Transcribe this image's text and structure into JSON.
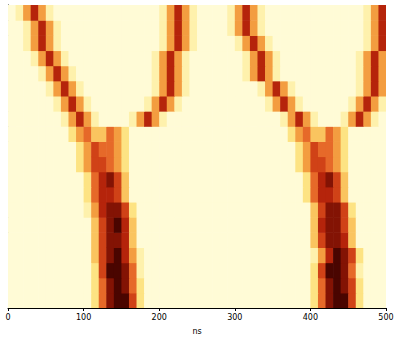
{
  "chart_data": {
    "type": "heatmap",
    "xlabel": "ns",
    "xlim": [
      0,
      500
    ],
    "xticks": [
      0,
      100,
      200,
      300,
      400,
      500
    ],
    "ylim": [
      0,
      20
    ],
    "tick_labels": "x",
    "grid": false,
    "xbins": [
      0,
      10,
      20,
      30,
      40,
      50,
      60,
      70,
      80,
      90,
      100,
      110,
      120,
      130,
      140,
      150,
      160,
      170,
      180,
      190,
      200,
      210,
      220,
      230,
      240,
      250,
      260,
      270,
      280,
      290,
      300,
      310,
      320,
      330,
      340,
      350,
      360,
      370,
      380,
      390,
      400,
      410,
      420,
      430,
      440,
      450,
      460,
      470,
      480,
      490,
      500
    ],
    "ybins": [
      0,
      1,
      2,
      3,
      4,
      5,
      6,
      7,
      8,
      9,
      10,
      11,
      12,
      13,
      14,
      15,
      16,
      17,
      18,
      19,
      20
    ],
    "cells": [
      [
        0,
        0,
        0,
        0,
        0,
        0,
        0,
        0,
        0,
        0,
        0,
        2,
        5,
        8,
        9,
        9,
        6,
        2,
        0,
        0,
        0,
        0,
        0,
        0,
        0,
        0,
        0,
        0,
        0,
        0,
        0,
        0,
        0,
        0,
        0,
        0,
        0,
        0,
        0,
        0,
        2,
        5,
        8,
        9,
        9,
        6,
        2,
        0,
        0,
        0
      ],
      [
        0,
        0,
        0,
        0,
        0,
        0,
        0,
        0,
        0,
        0,
        0,
        2,
        5,
        8,
        9,
        8,
        5,
        2,
        0,
        0,
        0,
        0,
        0,
        0,
        0,
        0,
        0,
        0,
        0,
        0,
        0,
        0,
        0,
        0,
        0,
        0,
        0,
        0,
        0,
        0,
        2,
        5,
        8,
        9,
        8,
        6,
        2,
        0,
        0,
        0
      ],
      [
        0,
        0,
        0,
        0,
        0,
        0,
        0,
        0,
        0,
        0,
        0,
        2,
        6,
        9,
        9,
        8,
        5,
        1,
        0,
        0,
        0,
        0,
        0,
        0,
        0,
        0,
        0,
        0,
        0,
        0,
        0,
        0,
        0,
        0,
        0,
        0,
        0,
        0,
        0,
        0,
        2,
        6,
        9,
        9,
        8,
        5,
        1,
        0,
        0,
        0
      ],
      [
        0,
        0,
        0,
        0,
        0,
        0,
        0,
        0,
        0,
        0,
        0,
        3,
        6,
        8,
        9,
        7,
        4,
        1,
        0,
        0,
        0,
        0,
        0,
        0,
        0,
        0,
        0,
        0,
        0,
        0,
        0,
        0,
        0,
        0,
        0,
        0,
        0,
        0,
        0,
        0,
        1,
        4,
        7,
        9,
        8,
        6,
        2,
        0,
        0,
        0
      ],
      [
        0,
        0,
        0,
        0,
        0,
        0,
        0,
        0,
        0,
        0,
        0,
        3,
        6,
        8,
        8,
        7,
        3,
        0,
        0,
        0,
        0,
        0,
        0,
        0,
        0,
        0,
        0,
        0,
        0,
        0,
        0,
        0,
        0,
        0,
        0,
        0,
        0,
        0,
        0,
        0,
        3,
        6,
        8,
        8,
        7,
        3,
        0,
        0,
        0,
        0
      ],
      [
        0,
        0,
        0,
        0,
        0,
        0,
        0,
        0,
        0,
        0,
        0,
        3,
        6,
        8,
        9,
        7,
        3,
        0,
        0,
        0,
        0,
        0,
        0,
        0,
        0,
        0,
        0,
        0,
        0,
        0,
        0,
        0,
        0,
        0,
        0,
        0,
        0,
        0,
        0,
        0,
        3,
        7,
        8,
        8,
        6,
        3,
        0,
        0,
        0,
        0
      ],
      [
        0,
        0,
        0,
        0,
        0,
        0,
        0,
        0,
        0,
        0,
        1,
        4,
        7,
        8,
        8,
        6,
        2,
        0,
        0,
        0,
        0,
        0,
        0,
        0,
        0,
        0,
        0,
        0,
        0,
        0,
        0,
        0,
        0,
        0,
        0,
        0,
        0,
        0,
        0,
        0,
        3,
        6,
        8,
        8,
        6,
        2,
        0,
        0,
        0,
        0
      ],
      [
        0,
        0,
        0,
        0,
        0,
        0,
        0,
        0,
        0,
        0,
        2,
        5,
        7,
        7,
        6,
        3,
        0,
        0,
        0,
        0,
        0,
        0,
        0,
        0,
        0,
        0,
        0,
        0,
        0,
        0,
        0,
        0,
        0,
        0,
        0,
        0,
        0,
        0,
        0,
        2,
        5,
        7,
        7,
        6,
        3,
        0,
        0,
        0,
        0,
        0
      ],
      [
        0,
        0,
        0,
        0,
        0,
        0,
        0,
        0,
        0,
        0,
        2,
        5,
        7,
        8,
        6,
        3,
        0,
        0,
        0,
        0,
        0,
        0,
        0,
        0,
        0,
        0,
        0,
        0,
        0,
        0,
        0,
        0,
        0,
        0,
        0,
        0,
        0,
        0,
        0,
        2,
        5,
        7,
        8,
        6,
        3,
        0,
        0,
        0,
        0,
        0
      ],
      [
        0,
        0,
        0,
        0,
        0,
        0,
        0,
        0,
        0,
        2,
        4,
        6,
        6,
        5,
        4,
        2,
        0,
        0,
        0,
        0,
        0,
        0,
        0,
        0,
        0,
        0,
        0,
        0,
        0,
        0,
        0,
        0,
        0,
        0,
        0,
        0,
        0,
        0,
        2,
        4,
        6,
        6,
        5,
        4,
        2,
        0,
        0,
        0,
        0,
        0
      ],
      [
        0,
        0,
        0,
        0,
        0,
        0,
        0,
        0,
        0,
        2,
        4,
        6,
        5,
        5,
        4,
        2,
        0,
        0,
        0,
        0,
        0,
        0,
        0,
        0,
        0,
        0,
        0,
        0,
        0,
        0,
        0,
        0,
        0,
        0,
        0,
        0,
        0,
        0,
        2,
        4,
        6,
        5,
        5,
        4,
        2,
        0,
        0,
        0,
        0,
        0
      ],
      [
        0,
        0,
        0,
        0,
        0,
        0,
        0,
        0,
        2,
        4,
        5,
        3,
        3,
        5,
        4,
        2,
        0,
        0,
        0,
        0,
        0,
        0,
        0,
        0,
        0,
        0,
        0,
        0,
        0,
        0,
        0,
        0,
        0,
        0,
        0,
        0,
        0,
        2,
        4,
        5,
        3,
        3,
        5,
        4,
        2,
        0,
        0,
        0,
        0,
        0
      ],
      [
        0,
        0,
        0,
        0,
        0,
        0,
        0,
        1,
        4,
        7,
        4,
        1,
        0,
        0,
        0,
        0,
        1,
        4,
        7,
        4,
        1,
        0,
        0,
        0,
        0,
        0,
        0,
        0,
        0,
        0,
        0,
        0,
        0,
        0,
        0,
        0,
        1,
        4,
        7,
        4,
        1,
        0,
        0,
        0,
        1,
        4,
        7,
        4,
        1,
        0
      ],
      [
        0,
        0,
        0,
        0,
        0,
        0,
        1,
        4,
        7,
        4,
        1,
        0,
        0,
        0,
        0,
        0,
        0,
        0,
        1,
        4,
        7,
        4,
        1,
        0,
        0,
        0,
        0,
        0,
        0,
        0,
        0,
        0,
        0,
        0,
        1,
        4,
        7,
        4,
        1,
        0,
        0,
        0,
        0,
        0,
        0,
        1,
        4,
        7,
        4,
        1
      ],
      [
        0,
        0,
        0,
        0,
        0,
        1,
        4,
        7,
        4,
        1,
        0,
        0,
        0,
        0,
        0,
        0,
        0,
        0,
        0,
        1,
        4,
        7,
        4,
        1,
        0,
        0,
        0,
        0,
        0,
        0,
        0,
        0,
        0,
        1,
        4,
        7,
        4,
        1,
        0,
        0,
        0,
        0,
        0,
        0,
        0,
        0,
        1,
        4,
        7,
        4
      ],
      [
        0,
        0,
        0,
        0,
        1,
        4,
        7,
        4,
        1,
        0,
        0,
        0,
        0,
        0,
        0,
        0,
        0,
        0,
        0,
        1,
        4,
        7,
        4,
        1,
        0,
        0,
        0,
        0,
        0,
        0,
        0,
        1,
        4,
        7,
        4,
        1,
        0,
        0,
        0,
        0,
        0,
        0,
        0,
        0,
        0,
        0,
        1,
        4,
        7,
        4
      ],
      [
        0,
        0,
        0,
        1,
        4,
        7,
        4,
        1,
        0,
        0,
        0,
        0,
        0,
        0,
        0,
        0,
        0,
        0,
        0,
        1,
        4,
        7,
        4,
        1,
        0,
        0,
        0,
        0,
        0,
        0,
        0,
        1,
        4,
        7,
        4,
        1,
        0,
        0,
        0,
        0,
        0,
        0,
        0,
        0,
        0,
        0,
        1,
        4,
        7,
        4
      ],
      [
        0,
        0,
        1,
        4,
        7,
        4,
        1,
        0,
        0,
        0,
        0,
        0,
        0,
        0,
        0,
        0,
        0,
        0,
        0,
        0,
        1,
        4,
        7,
        4,
        1,
        0,
        0,
        0,
        0,
        0,
        1,
        4,
        7,
        4,
        1,
        0,
        0,
        0,
        0,
        0,
        0,
        0,
        0,
        0,
        0,
        0,
        0,
        1,
        4,
        7
      ],
      [
        0,
        0,
        1,
        4,
        7,
        4,
        1,
        0,
        0,
        0,
        0,
        0,
        0,
        0,
        0,
        0,
        0,
        0,
        0,
        0,
        1,
        4,
        7,
        4,
        1,
        0,
        0,
        0,
        0,
        1,
        4,
        7,
        4,
        1,
        0,
        0,
        0,
        0,
        0,
        0,
        0,
        0,
        0,
        0,
        0,
        0,
        0,
        1,
        4,
        7
      ],
      [
        0,
        1,
        4,
        7,
        4,
        1,
        0,
        0,
        0,
        0,
        0,
        0,
        0,
        0,
        0,
        0,
        0,
        0,
        0,
        0,
        1,
        4,
        7,
        4,
        1,
        0,
        0,
        0,
        0,
        1,
        4,
        7,
        4,
        1,
        0,
        0,
        0,
        0,
        0,
        0,
        0,
        0,
        0,
        0,
        0,
        0,
        0,
        1,
        4,
        7
      ]
    ]
  }
}
